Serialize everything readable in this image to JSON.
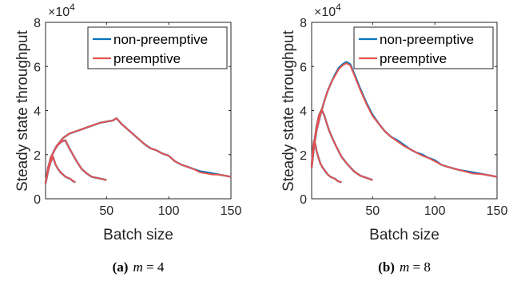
{
  "chart_data": [
    {
      "type": "line",
      "caption": {
        "label": "(a)",
        "var": "m",
        "rest": " = 4"
      },
      "xlabel": "Batch size",
      "ylabel": "Steady state throughput",
      "multiplier": "×10",
      "multiplier_exp": "4",
      "xlim": [
        1,
        150
      ],
      "ylim": [
        0,
        8
      ],
      "xticks": [
        50,
        100,
        150
      ],
      "yticks": [
        0,
        2,
        4,
        6,
        8
      ],
      "legend_position": "top-right",
      "colors": {
        "non-preemptive": "#0072BD",
        "preemptive": "#E8534F"
      },
      "series": [
        {
          "name": "non-preemptive",
          "curves": [
            {
              "x": [
                1,
                3,
                5,
                7,
                9,
                11,
                13,
                15,
                17,
                19,
                21,
                23,
                25
              ],
              "y": [
                0.7,
                1.25,
                1.65,
                1.9,
                1.55,
                1.35,
                1.2,
                1.1,
                1.0,
                0.95,
                0.9,
                0.8,
                0.75
              ]
            },
            {
              "x": [
                1,
                3,
                5,
                8,
                11,
                14,
                17,
                20,
                23,
                26,
                30,
                34,
                38,
                42,
                46,
                50
              ],
              "y": [
                0.7,
                1.4,
                1.8,
                2.2,
                2.45,
                2.6,
                2.65,
                2.3,
                2.0,
                1.7,
                1.35,
                1.15,
                1.0,
                0.95,
                0.9,
                0.85
              ]
            },
            {
              "x": [
                1,
                5,
                10,
                15,
                20,
                25,
                30,
                35,
                40,
                45,
                50,
                55,
                58,
                62,
                66,
                70,
                75,
                80,
                85,
                90,
                95,
                100,
                105,
                110,
                115,
                120,
                125,
                130,
                135,
                140,
                145,
                150
              ],
              "y": [
                0.7,
                1.85,
                2.4,
                2.75,
                2.95,
                3.05,
                3.15,
                3.25,
                3.35,
                3.45,
                3.5,
                3.55,
                3.65,
                3.4,
                3.2,
                3.0,
                2.75,
                2.5,
                2.3,
                2.2,
                2.05,
                1.95,
                1.7,
                1.55,
                1.45,
                1.35,
                1.25,
                1.2,
                1.15,
                1.1,
                1.05,
                1.0
              ]
            }
          ]
        },
        {
          "name": "preemptive",
          "curves": [
            {
              "x": [
                1,
                3,
                5,
                7,
                9,
                11,
                13,
                15,
                17,
                19,
                21,
                23,
                25
              ],
              "y": [
                0.7,
                1.25,
                1.65,
                1.9,
                1.55,
                1.35,
                1.2,
                1.1,
                1.0,
                0.95,
                0.9,
                0.8,
                0.75
              ]
            },
            {
              "x": [
                1,
                3,
                5,
                8,
                11,
                14,
                17,
                20,
                23,
                26,
                30,
                34,
                38,
                42,
                46,
                50
              ],
              "y": [
                0.7,
                1.4,
                1.8,
                2.2,
                2.45,
                2.6,
                2.65,
                2.3,
                2.0,
                1.7,
                1.35,
                1.15,
                1.0,
                0.95,
                0.9,
                0.85
              ]
            },
            {
              "x": [
                1,
                5,
                10,
                15,
                20,
                25,
                30,
                35,
                40,
                45,
                50,
                55,
                58,
                62,
                66,
                70,
                75,
                80,
                85,
                90,
                95,
                100,
                105,
                110,
                115,
                120,
                125,
                130,
                135,
                140,
                145,
                150
              ],
              "y": [
                0.7,
                1.85,
                2.4,
                2.75,
                2.95,
                3.05,
                3.15,
                3.25,
                3.35,
                3.45,
                3.5,
                3.55,
                3.65,
                3.4,
                3.2,
                3.0,
                2.75,
                2.5,
                2.3,
                2.2,
                2.05,
                1.95,
                1.7,
                1.55,
                1.45,
                1.35,
                1.2,
                1.15,
                1.1,
                1.1,
                1.05,
                1.0
              ]
            }
          ]
        }
      ]
    },
    {
      "type": "line",
      "caption": {
        "label": "(b)",
        "var": "m",
        "rest": " = 8"
      },
      "xlabel": "Batch size",
      "ylabel": "Steady state throughput",
      "multiplier": "×10",
      "multiplier_exp": "4",
      "xlim": [
        1,
        150
      ],
      "ylim": [
        0,
        8
      ],
      "xticks": [
        50,
        100,
        150
      ],
      "yticks": [
        0,
        2,
        4,
        6,
        8
      ],
      "legend_position": "top-right",
      "colors": {
        "non-preemptive": "#0072BD",
        "preemptive": "#E8534F"
      },
      "series": [
        {
          "name": "non-preemptive",
          "curves": [
            {
              "x": [
                1,
                2,
                3,
                4,
                5,
                6,
                8,
                10,
                12,
                14,
                16,
                18,
                20,
                22,
                25
              ],
              "y": [
                1.5,
                2.3,
                2.65,
                2.45,
                2.15,
                1.95,
                1.6,
                1.4,
                1.25,
                1.1,
                1.0,
                0.95,
                0.9,
                0.8,
                0.75
              ]
            },
            {
              "x": [
                1,
                3,
                5,
                7,
                9,
                11,
                13,
                15,
                18,
                21,
                25,
                30,
                35,
                40,
                45,
                50
              ],
              "y": [
                1.4,
                2.5,
                3.3,
                3.8,
                4.05,
                3.8,
                3.45,
                3.1,
                2.7,
                2.35,
                1.9,
                1.55,
                1.25,
                1.05,
                0.95,
                0.85
              ]
            },
            {
              "x": [
                1,
                3,
                5,
                8,
                11,
                14,
                17,
                20,
                23,
                26,
                29,
                32,
                35,
                40,
                45,
                50,
                55,
                60,
                65,
                70,
                75,
                80,
                85,
                90,
                95,
                100,
                105,
                110,
                120,
                130,
                140,
                150
              ],
              "y": [
                1.4,
                2.4,
                3.1,
                3.8,
                4.4,
                4.9,
                5.3,
                5.65,
                5.95,
                6.1,
                6.2,
                6.1,
                5.7,
                5.0,
                4.35,
                3.8,
                3.4,
                3.05,
                2.8,
                2.65,
                2.45,
                2.25,
                2.1,
                2.0,
                1.85,
                1.75,
                1.55,
                1.45,
                1.3,
                1.2,
                1.1,
                1.0
              ]
            }
          ]
        },
        {
          "name": "preemptive",
          "curves": [
            {
              "x": [
                1,
                2,
                3,
                4,
                5,
                6,
                8,
                10,
                12,
                14,
                16,
                18,
                20,
                22,
                25
              ],
              "y": [
                1.5,
                2.3,
                2.65,
                2.45,
                2.15,
                1.95,
                1.6,
                1.4,
                1.25,
                1.1,
                1.0,
                0.95,
                0.9,
                0.8,
                0.75
              ]
            },
            {
              "x": [
                1,
                3,
                5,
                7,
                9,
                11,
                13,
                15,
                18,
                21,
                25,
                30,
                35,
                40,
                45,
                50
              ],
              "y": [
                1.4,
                2.5,
                3.3,
                3.8,
                4.05,
                3.8,
                3.45,
                3.1,
                2.7,
                2.35,
                1.9,
                1.55,
                1.25,
                1.05,
                0.95,
                0.85
              ]
            },
            {
              "x": [
                1,
                3,
                5,
                8,
                11,
                14,
                17,
                20,
                23,
                26,
                29,
                32,
                35,
                40,
                45,
                50,
                55,
                60,
                65,
                70,
                75,
                80,
                85,
                90,
                95,
                100,
                105,
                110,
                120,
                130,
                140,
                150
              ],
              "y": [
                1.4,
                2.4,
                3.1,
                3.8,
                4.4,
                4.9,
                5.3,
                5.6,
                5.9,
                6.05,
                6.15,
                6.05,
                5.65,
                4.95,
                4.3,
                3.75,
                3.4,
                3.05,
                2.8,
                2.6,
                2.4,
                2.25,
                2.1,
                1.95,
                1.85,
                1.7,
                1.55,
                1.45,
                1.3,
                1.15,
                1.1,
                1.0
              ]
            }
          ]
        }
      ]
    }
  ]
}
